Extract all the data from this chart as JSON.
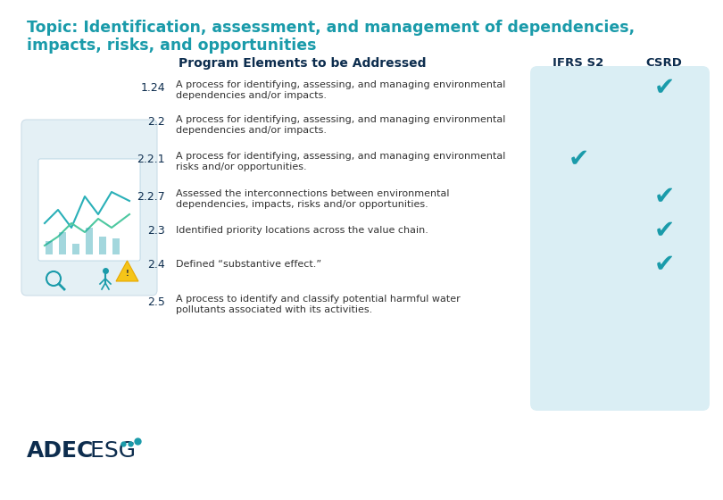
{
  "title_line1": "Topic: Identification, assessment, and management of dependencies,",
  "title_line2": "impacts, risks, and opportunities",
  "title_color": "#1a9baa",
  "header_col1": "Program Elements to be Addressed",
  "header_col2": "IFRS S2",
  "header_col3": "CSRD",
  "header_color": "#0d2d4e",
  "bg_color": "#ffffff",
  "panel_color": "#daeef4",
  "rows": [
    {
      "number": "1.24",
      "text_line1": "A process for identifying, assessing, and managing environmental",
      "text_line2": "dependencies and/or impacts.",
      "ifrs": false,
      "csrd": true
    },
    {
      "number": "2.2",
      "text_line1": "A process for identifying, assessing, and managing environmental",
      "text_line2": "dependencies and/or impacts.",
      "ifrs": false,
      "csrd": false
    },
    {
      "number": "2.2.1",
      "text_line1": "A process for identifying, assessing, and managing environmental",
      "text_line2": "risks and/or opportunities.",
      "ifrs": true,
      "csrd": false
    },
    {
      "number": "2.2.7",
      "text_line1": "Assessed the interconnections between environmental",
      "text_line2": "dependencies, impacts, risks and/or opportunities.",
      "ifrs": false,
      "csrd": true
    },
    {
      "number": "2.3",
      "text_line1": "Identified priority locations across the value chain.",
      "text_line2": "",
      "ifrs": false,
      "csrd": true
    },
    {
      "number": "2.4",
      "text_line1": "Defined “substantive effect.”",
      "text_line2": "",
      "ifrs": false,
      "csrd": true
    },
    {
      "number": "2.5",
      "text_line1": "A process to identify and classify potential harmful water",
      "text_line2": "pollutants associated with its activities.",
      "ifrs": false,
      "csrd": false
    }
  ],
  "check_color": "#1a9baa",
  "number_color": "#0d2d4e",
  "text_color": "#333333",
  "logo_adec": "ADEC",
  "logo_esg": " ESG"
}
